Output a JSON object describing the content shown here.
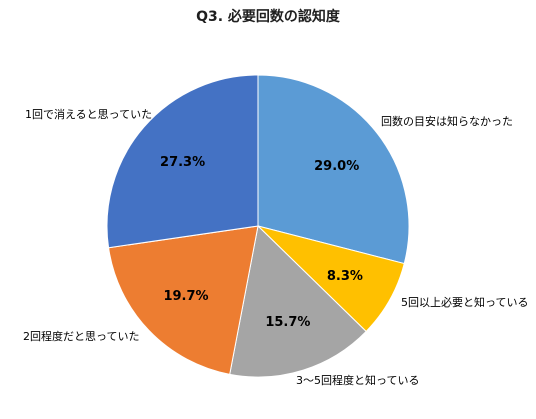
{
  "chart_data": {
    "type": "pie",
    "title": "Q3. 必要回数の認知度",
    "slices": [
      {
        "label": "回数の目安は知らなかった",
        "value": 29.0,
        "value_label": "29.0%",
        "color": "#5B9BD5"
      },
      {
        "label": "5回以上必要と知っている",
        "value": 8.3,
        "value_label": "8.3%",
        "color": "#FFC000"
      },
      {
        "label": "3〜5回程度と知っている",
        "value": 15.7,
        "value_label": "15.7%",
        "color": "#A5A5A5"
      },
      {
        "label": "2回程度だと思っていた",
        "value": 19.7,
        "value_label": "19.7%",
        "color": "#ED7D31"
      },
      {
        "label": "1回で消えると思っていた",
        "value": 27.3,
        "value_label": "27.3%",
        "color": "#4472C4"
      }
    ],
    "start_angle_deg": 0,
    "direction": "clockwise",
    "legend": "none",
    "labels": "outside"
  }
}
